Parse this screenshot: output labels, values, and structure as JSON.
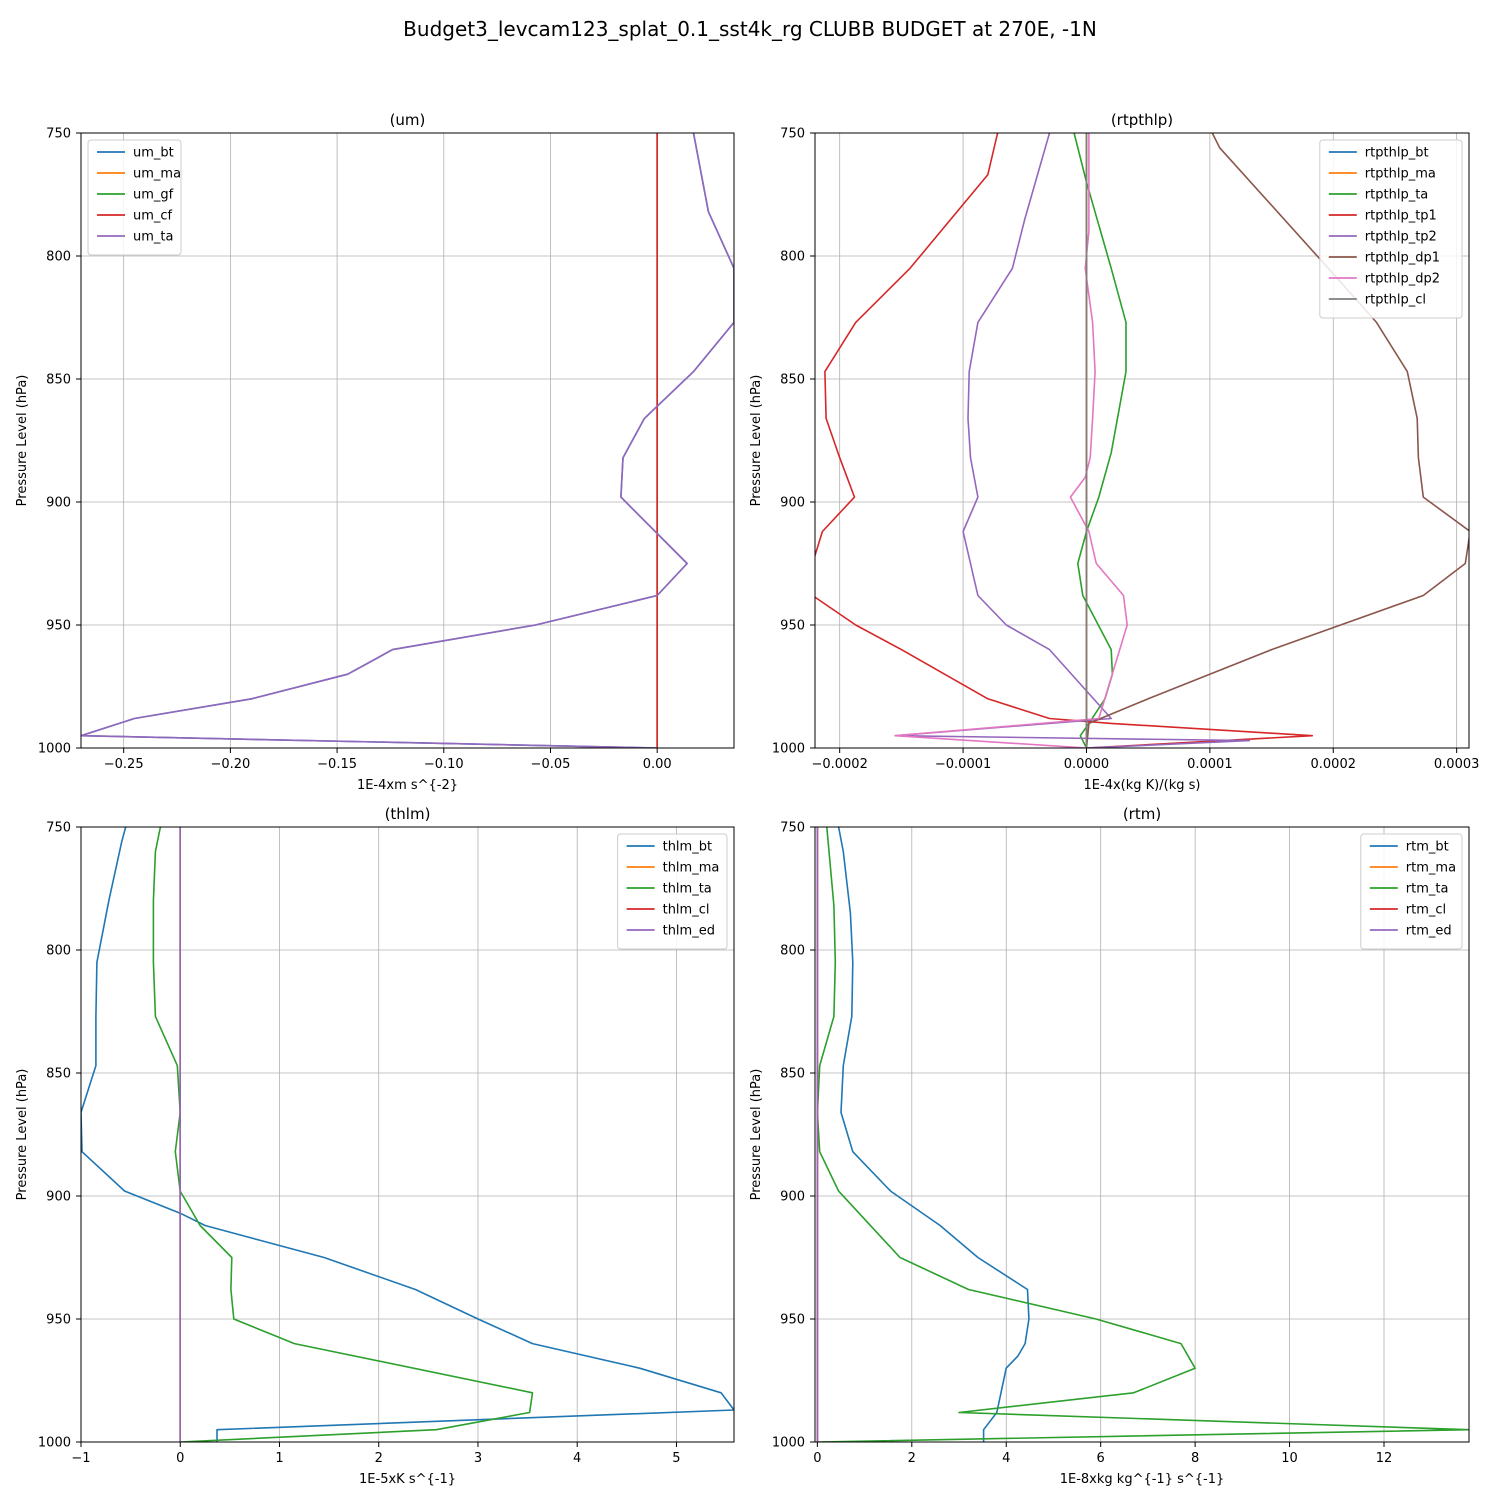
{
  "figure": {
    "suptitle": "Budget3_levcam123_splat_0.1_sst4k_rg CLUBB BUDGET at 270E, -1N"
  },
  "chart_data": [
    {
      "type": "line",
      "title": "(um)",
      "xlabel": "1E-4xm s^{-2}",
      "ylabel": "Pressure Level (hPa)",
      "xlim": [
        -0.27,
        0.036
      ],
      "ylim": [
        1000,
        750
      ],
      "y_inverted": true,
      "grid": true,
      "legend_position": "upper-left",
      "xticks": [
        -0.25,
        -0.2,
        -0.15,
        -0.1,
        -0.05,
        0.0
      ],
      "xtick_labels": [
        "−0.25",
        "−0.20",
        "−0.15",
        "−0.10",
        "−0.05",
        "0.00"
      ],
      "yticks": [
        750,
        800,
        850,
        900,
        950,
        1000
      ],
      "ytick_labels": [
        "750",
        "800",
        "850",
        "900",
        "950",
        "1000"
      ],
      "series": [
        {
          "name": "um_bt",
          "color": "#1f77b4",
          "x": [
            0.017,
            0.024,
            0.036,
            0.036,
            0.017,
            -0.006,
            -0.016,
            -0.017,
            0.014,
            0.0,
            -0.057,
            -0.124,
            -0.145,
            -0.19,
            -0.245,
            -0.27,
            0.0
          ],
          "y": [
            750,
            782,
            805,
            827,
            847,
            866,
            882,
            898,
            925,
            938,
            950,
            960,
            970,
            980,
            988,
            995,
            1000
          ]
        },
        {
          "name": "um_ma",
          "color": "#ff7f0e",
          "x": [
            0,
            0
          ],
          "y": [
            750,
            1000
          ]
        },
        {
          "name": "um_gf",
          "color": "#2ca02c",
          "x": [
            0,
            0
          ],
          "y": [
            750,
            1000
          ]
        },
        {
          "name": "um_cf",
          "color": "#d62728",
          "x": [
            0,
            0
          ],
          "y": [
            750,
            1000
          ]
        },
        {
          "name": "um_ta",
          "color": "#9467bd",
          "x": [
            0.017,
            0.024,
            0.036,
            0.036,
            0.017,
            -0.006,
            -0.016,
            -0.017,
            0.014,
            0.0,
            -0.057,
            -0.124,
            -0.145,
            -0.19,
            -0.245,
            -0.27,
            0.0
          ],
          "y": [
            750,
            782,
            805,
            827,
            847,
            866,
            882,
            898,
            925,
            938,
            950,
            960,
            970,
            980,
            988,
            995,
            1000
          ]
        }
      ]
    },
    {
      "type": "line",
      "title": "(rtpthlp)",
      "xlabel": "1E-4x(kg K)/(kg s)",
      "ylabel": "Pressure Level (hPa)",
      "xlim": [
        -0.00022,
        0.00031
      ],
      "ylim": [
        1000,
        750
      ],
      "y_inverted": true,
      "grid": true,
      "legend_position": "upper-right",
      "xticks": [
        -0.0002,
        -0.0001,
        0.0,
        0.0001,
        0.0002,
        0.0003
      ],
      "xtick_labels": [
        "−0.0002",
        "−0.0001",
        "0.0000",
        "0.0001",
        "0.0002",
        "0.0003"
      ],
      "yticks": [
        750,
        800,
        850,
        900,
        950,
        1000
      ],
      "ytick_labels": [
        "750",
        "800",
        "850",
        "900",
        "950",
        "1000"
      ],
      "series": [
        {
          "name": "rtpthlp_bt",
          "color": "#1f77b4",
          "x": [
            0,
            0
          ],
          "y": [
            750,
            1000
          ]
        },
        {
          "name": "rtpthlp_ma",
          "color": "#ff7f0e",
          "x": [
            0,
            0
          ],
          "y": [
            750,
            1000
          ]
        },
        {
          "name": "rtpthlp_ta",
          "color": "#2ca02c",
          "x": [
            -1e-05,
            0.0,
            2e-05,
            3.2e-05,
            3.2e-05,
            2e-05,
            1e-05,
            0.0,
            -7e-06,
            -3e-06,
            2e-05,
            2.1e-05,
            1.5e-05,
            2e-06,
            -5e-06,
            0.0
          ],
          "y": [
            750,
            770,
            805,
            827,
            847,
            880,
            898,
            912,
            925,
            938,
            960,
            970,
            980,
            990,
            995,
            1000
          ]
        },
        {
          "name": "rtpthlp_tp1",
          "color": "#d62728",
          "x": [
            -7.2e-05,
            -8e-05,
            -0.000143,
            -0.000187,
            -0.000212,
            -0.000211,
            -0.0002,
            -0.000188,
            -0.000214,
            -0.000222,
            -0.000222,
            -0.000187,
            -0.00015,
            -8e-05,
            -3e-05,
            2e-05,
            0.000183,
            0.0
          ],
          "y": [
            750,
            767,
            805,
            827,
            847,
            866,
            882,
            898,
            912,
            925,
            938,
            950,
            960,
            980,
            988,
            990,
            995,
            1000
          ]
        },
        {
          "name": "rtpthlp_tp2",
          "color": "#9467bd",
          "x": [
            -3e-05,
            -5e-05,
            -6e-05,
            -8.8e-05,
            -9.5e-05,
            -9.6e-05,
            -9.4e-05,
            -8.8e-05,
            -0.0001,
            -9.4e-05,
            -8.8e-05,
            -6.5e-05,
            -3e-05,
            2e-05,
            -0.000155,
            0.000132,
            0.0
          ],
          "y": [
            750,
            785,
            805,
            827,
            847,
            866,
            882,
            898,
            912,
            925,
            938,
            950,
            960,
            988,
            995,
            997,
            1000
          ]
        },
        {
          "name": "rtpthlp_dp1",
          "color": "#8b564b",
          "x": [
            0.000102,
            0.000108,
            0.000196,
            0.000235,
            0.00026,
            0.000268,
            0.000269,
            0.000273,
            0.000311,
            0.000307,
            0.000273,
            0.00015,
            5e-05,
            2e-06,
            0.0
          ],
          "y": [
            750,
            756,
            805,
            827,
            847,
            866,
            882,
            898,
            912,
            925,
            938,
            960,
            980,
            990,
            1000
          ]
        },
        {
          "name": "rtpthlp_dp2",
          "color": "#e377c2",
          "x": [
            2e-06,
            2e-06,
            -1e-06,
            5e-06,
            7e-06,
            5e-06,
            3e-06,
            -1e-06,
            -1.3e-05,
            2e-06,
            8e-06,
            3e-05,
            3.3e-05,
            1e-05,
            -0.000155,
            0.0
          ],
          "y": [
            750,
            790,
            805,
            827,
            847,
            866,
            882,
            890,
            898,
            912,
            925,
            938,
            950,
            988,
            995,
            1000
          ]
        },
        {
          "name": "rtpthlp_cl",
          "color": "#7f7f7f",
          "x": [
            0,
            0
          ],
          "y": [
            750,
            1000
          ]
        }
      ]
    },
    {
      "type": "line",
      "title": "(thlm)",
      "xlabel": "1E-5xK s^{-1}",
      "ylabel": "Pressure Level (hPa)",
      "xlim": [
        -1.0,
        5.58
      ],
      "ylim": [
        1000,
        750
      ],
      "y_inverted": true,
      "grid": true,
      "legend_position": "upper-right",
      "xticks": [
        -1,
        0,
        1,
        2,
        3,
        4,
        5
      ],
      "xtick_labels": [
        "−1",
        "0",
        "1",
        "2",
        "3",
        "4",
        "5"
      ],
      "yticks": [
        750,
        800,
        850,
        900,
        950,
        1000
      ],
      "ytick_labels": [
        "750",
        "800",
        "850",
        "900",
        "950",
        "1000"
      ],
      "series": [
        {
          "name": "thlm_bt",
          "color": "#1f77b4",
          "x": [
            -0.55,
            -0.59,
            -0.72,
            -0.84,
            -0.85,
            -0.85,
            -1.0,
            -0.99,
            -0.56,
            0.0,
            0.25,
            1.45,
            2.37,
            3.0,
            3.55,
            4.63,
            5.45,
            5.58,
            0.37,
            0.37
          ],
          "y": [
            750,
            756,
            780,
            805,
            827,
            847,
            866,
            882,
            898,
            907,
            912,
            925,
            938,
            950,
            960,
            970,
            980,
            987,
            995,
            1000
          ]
        },
        {
          "name": "thlm_ma",
          "color": "#ff7f0e",
          "x": [
            0,
            0
          ],
          "y": [
            750,
            1000
          ]
        },
        {
          "name": "thlm_ta",
          "color": "#2ca02c",
          "x": [
            -0.2,
            -0.25,
            -0.27,
            -0.27,
            -0.25,
            -0.03,
            0.0,
            -0.05,
            0.0,
            0.2,
            0.52,
            0.51,
            0.54,
            1.15,
            3.55,
            3.52,
            2.58,
            0.0
          ],
          "y": [
            750,
            760,
            780,
            805,
            827,
            847,
            866,
            882,
            898,
            912,
            925,
            938,
            950,
            960,
            980,
            988,
            995,
            1000
          ]
        },
        {
          "name": "thlm_cl",
          "color": "#d62728",
          "x": [
            0,
            0
          ],
          "y": [
            750,
            1000
          ]
        },
        {
          "name": "thlm_ed",
          "color": "#9467bd",
          "x": [
            0,
            0
          ],
          "y": [
            750,
            1000
          ]
        }
      ]
    },
    {
      "type": "line",
      "title": "(rtm)",
      "xlabel": "1E-8xkg kg^{-1} s^{-1}",
      "ylabel": "Pressure Level (hPa)",
      "xlim": [
        -0.05,
        13.8
      ],
      "ylim": [
        1000,
        750
      ],
      "y_inverted": true,
      "grid": true,
      "legend_position": "upper-right",
      "xticks": [
        0,
        2,
        4,
        6,
        8,
        10,
        12
      ],
      "xtick_labels": [
        "0",
        "2",
        "4",
        "6",
        "8",
        "10",
        "12"
      ],
      "yticks": [
        750,
        800,
        850,
        900,
        950,
        1000
      ],
      "ytick_labels": [
        "750",
        "800",
        "850",
        "900",
        "950",
        "1000"
      ],
      "series": [
        {
          "name": "rtm_bt",
          "color": "#1f77b4",
          "x": [
            0.45,
            0.55,
            0.7,
            0.75,
            0.73,
            0.55,
            0.5,
            0.75,
            1.55,
            2.6,
            3.4,
            4.45,
            4.48,
            4.4,
            4.25,
            4.0,
            3.8,
            3.52,
            3.52
          ],
          "y": [
            750,
            760,
            785,
            805,
            827,
            847,
            866,
            882,
            898,
            912,
            925,
            938,
            950,
            960,
            965,
            970,
            988,
            995,
            1000
          ]
        },
        {
          "name": "rtm_ma",
          "color": "#ff7f0e",
          "x": [
            0,
            0
          ],
          "y": [
            750,
            1000
          ]
        },
        {
          "name": "rtm_ta",
          "color": "#2ca02c",
          "x": [
            0.2,
            0.35,
            0.38,
            0.35,
            0.05,
            0.0,
            0.05,
            0.45,
            1.75,
            3.2,
            5.9,
            7.7,
            8.0,
            6.7,
            3.0,
            13.8,
            0.0
          ],
          "y": [
            750,
            782,
            805,
            827,
            847,
            866,
            882,
            898,
            925,
            938,
            950,
            960,
            970,
            980,
            988,
            995,
            1000
          ]
        },
        {
          "name": "rtm_cl",
          "color": "#d62728",
          "x": [
            0,
            0
          ],
          "y": [
            750,
            1000
          ]
        },
        {
          "name": "rtm_ed",
          "color": "#9467bd",
          "x": [
            0,
            0
          ],
          "y": [
            750,
            1000
          ]
        }
      ]
    }
  ]
}
